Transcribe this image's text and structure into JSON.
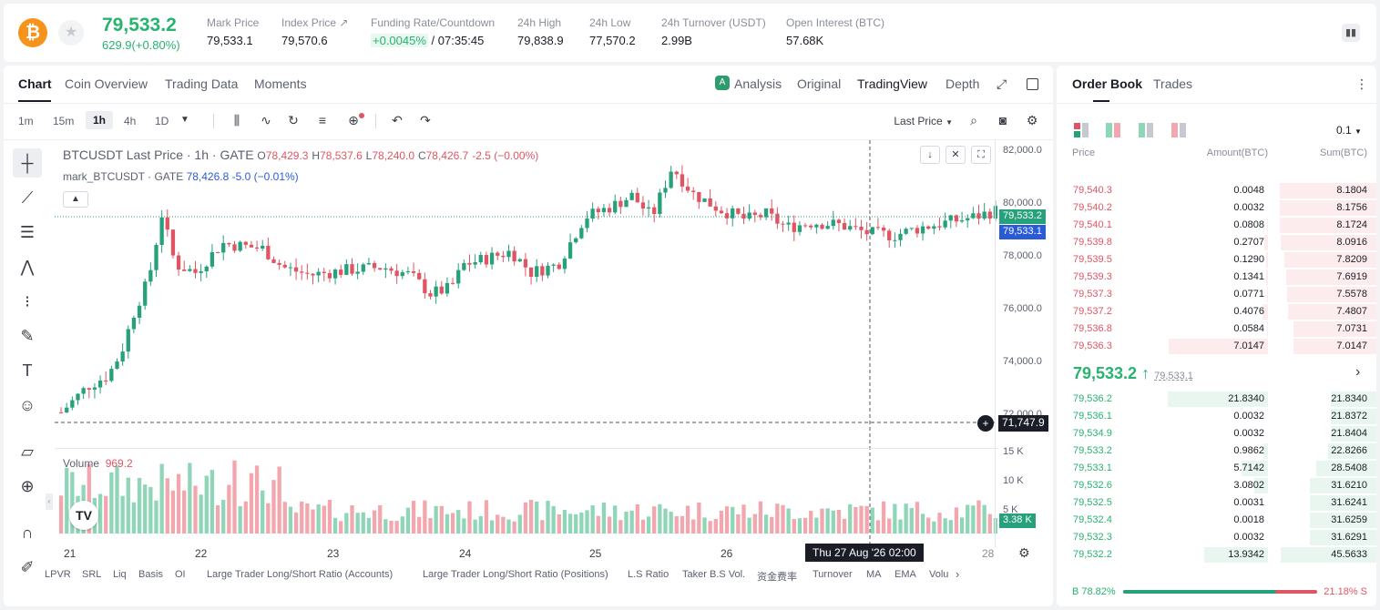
{
  "header": {
    "coin_symbol": "₿",
    "price": "79,533.2",
    "change": "629.9(+0.80%)",
    "stats": [
      {
        "label": "Mark Price",
        "value": "79,533.1"
      },
      {
        "label": "Index Price ↗",
        "value": "79,570.6"
      },
      {
        "label": "Funding Rate/Countdown",
        "value_rate": "+0.0045%",
        "value_cd": " / 07:35:45"
      },
      {
        "label": "24h High",
        "value": "79,838.9"
      },
      {
        "label": "24h Low",
        "value": "77,570.2"
      },
      {
        "label": "24h Turnover (USDT)",
        "value": "2.99B"
      },
      {
        "label": "Open Interest (BTC)",
        "value": "57.68K"
      }
    ]
  },
  "chart_tabs": [
    "Chart",
    "Coin Overview",
    "Trading Data",
    "Moments"
  ],
  "view_tabs": [
    "Analysis",
    "Original",
    "TradingView",
    "Depth"
  ],
  "timeframes": [
    "1m",
    "15m",
    "1h",
    "4h",
    "1D"
  ],
  "last_price_label": "Last Price",
  "legend": {
    "symbol": "BTCUSDT Last Price · 1h · GATE",
    "o_k": "O",
    "o": "78,429.3",
    "h_k": "H",
    "h": "78,537.6",
    "l_k": "L",
    "l": "78,240.0",
    "c_k": "C",
    "c": "78,426.7",
    "chg": "-2.5 (−0.00%)",
    "mark": "mark_BTCUSDT · GATE",
    "mark_val": "78,426.8",
    "mark_chg": "-5.0 (−0.01%)"
  },
  "volume_label": "Volume",
  "volume_value": "969.2",
  "price_axis": [
    "82,000.0",
    "80,000.0",
    "78,000.0",
    "76,000.0",
    "74,000.0",
    "72,000.0"
  ],
  "vol_axis": [
    "15 K",
    "10 K",
    "5 K"
  ],
  "tags": {
    "last": "79,533.2",
    "mark": "79,533.1",
    "cross": "71,747.9",
    "vol": "3.38 K"
  },
  "x_labels": [
    "21",
    "22",
    "23",
    "24",
    "25",
    "26",
    "28"
  ],
  "crosshair_time": "Thu 27 Aug '26   02:00",
  "indicators": [
    "LPVR",
    "SRL",
    "Liq",
    "Basis",
    "OI",
    "Large Trader Long/Short Ratio (Accounts)",
    "Large Trader Long/Short Ratio (Positions)",
    "L.S Ratio",
    "Taker B.S Vol.",
    "资金费率",
    "Turnover",
    "MA",
    "EMA",
    "Volu"
  ],
  "colors": {
    "up": "#26a17b",
    "down": "#e05563",
    "up_vol": "#8fd6b8",
    "down_vol": "#f2a7ae"
  },
  "orderbook": {
    "tabs": [
      "Order Book",
      "Trades"
    ],
    "precision": "0.1",
    "headers": [
      "Price",
      "Amount(BTC)",
      "Sum(BTC)"
    ],
    "asks": [
      {
        "price": "79,540.3",
        "amount": "0.0048",
        "sum": "8.1804"
      },
      {
        "price": "79,540.2",
        "amount": "0.0032",
        "sum": "8.1756"
      },
      {
        "price": "79,540.1",
        "amount": "0.0808",
        "sum": "8.1724"
      },
      {
        "price": "79,539.8",
        "amount": "0.2707",
        "sum": "8.0916"
      },
      {
        "price": "79,539.5",
        "amount": "0.1290",
        "sum": "7.8209"
      },
      {
        "price": "79,539.3",
        "amount": "0.1341",
        "sum": "7.6919"
      },
      {
        "price": "79,537.3",
        "amount": "0.0771",
        "sum": "7.5578"
      },
      {
        "price": "79,537.2",
        "amount": "0.4076",
        "sum": "7.4807"
      },
      {
        "price": "79,536.8",
        "amount": "0.0584",
        "sum": "7.0731"
      },
      {
        "price": "79,536.3",
        "amount": "7.0147",
        "sum": "7.0147"
      }
    ],
    "mid_price": "79,533.2 ↑",
    "mid_mark": "79,533.1",
    "bids": [
      {
        "price": "79,536.2",
        "amount": "21.8340",
        "sum": "21.8340"
      },
      {
        "price": "79,536.1",
        "amount": "0.0032",
        "sum": "21.8372"
      },
      {
        "price": "79,534.9",
        "amount": "0.0032",
        "sum": "21.8404"
      },
      {
        "price": "79,533.2",
        "amount": "0.9862",
        "sum": "22.8266"
      },
      {
        "price": "79,533.1",
        "amount": "5.7142",
        "sum": "28.5408"
      },
      {
        "price": "79,532.6",
        "amount": "3.0802",
        "sum": "31.6210"
      },
      {
        "price": "79,532.5",
        "amount": "0.0031",
        "sum": "31.6241"
      },
      {
        "price": "79,532.4",
        "amount": "0.0018",
        "sum": "31.6259"
      },
      {
        "price": "79,532.3",
        "amount": "0.0032",
        "sum": "31.6291"
      },
      {
        "price": "79,532.2",
        "amount": "13.9342",
        "sum": "45.5633"
      }
    ],
    "buy_ratio": "B 78.82%",
    "sell_ratio": "21.18% S",
    "buy_fraction": 0.7882
  }
}
